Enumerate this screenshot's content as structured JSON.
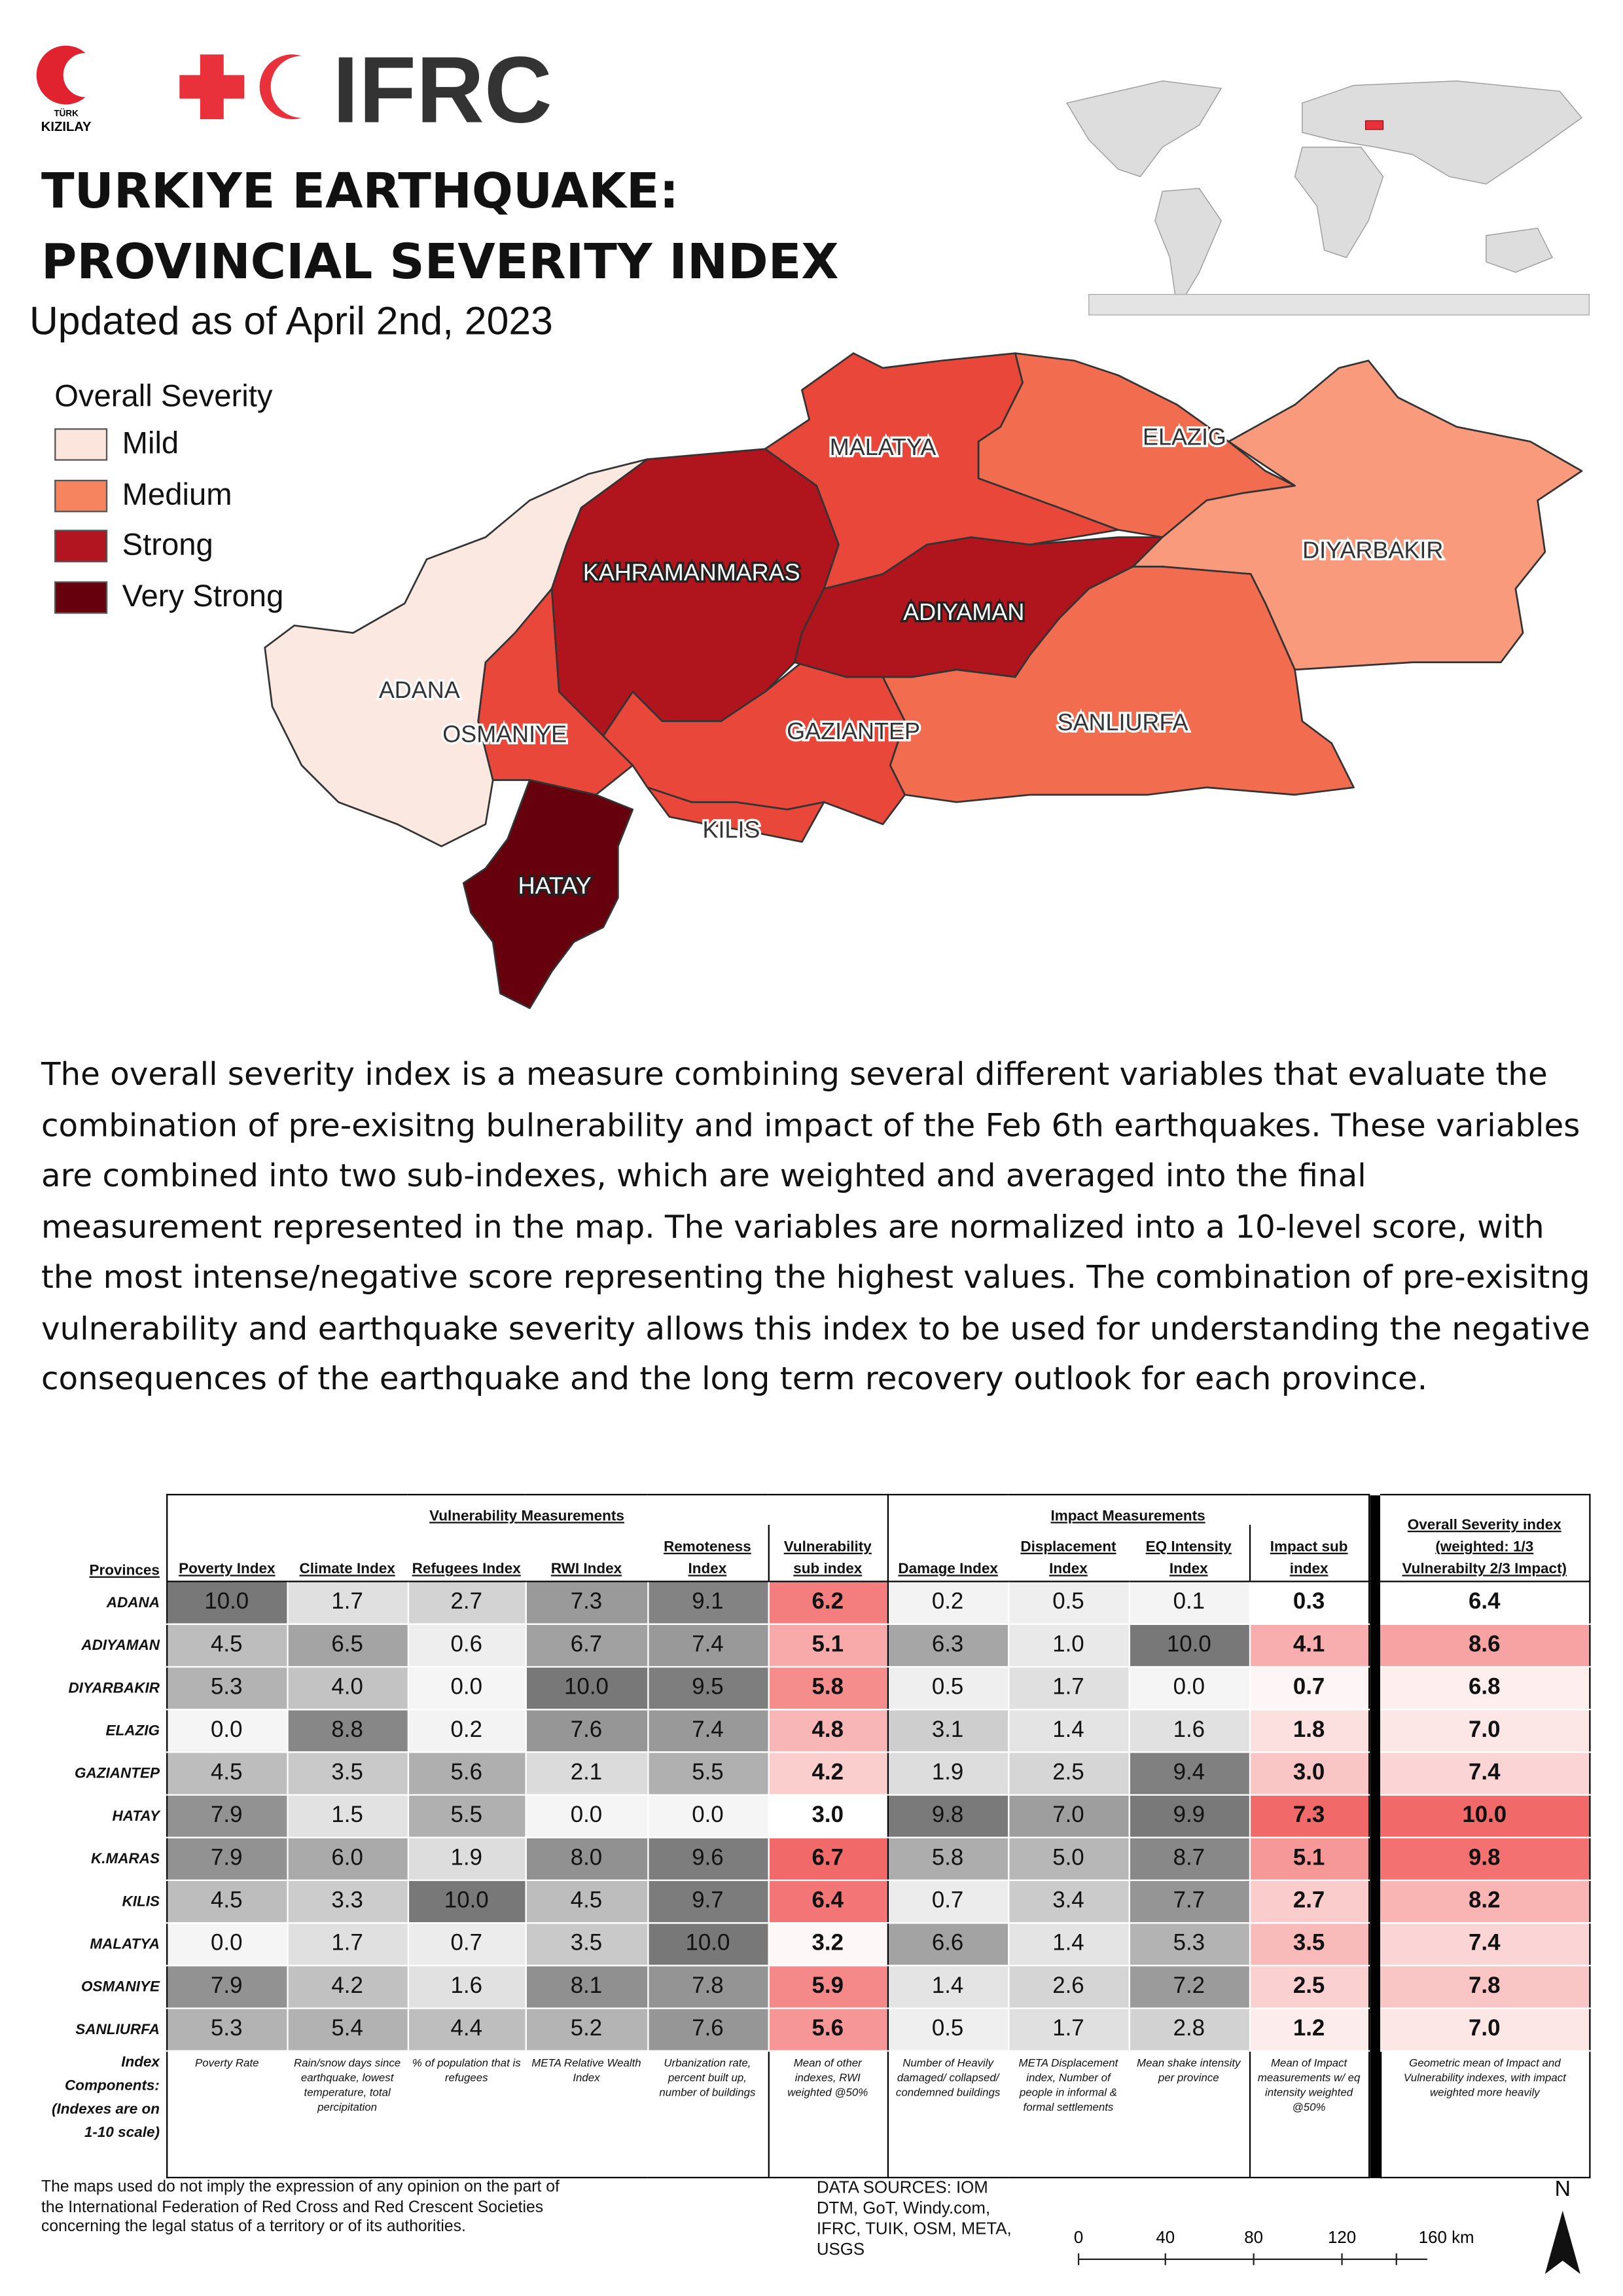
{
  "header": {
    "kizilay_logo": [
      "TÜRK",
      "KIZILAY"
    ],
    "ifrc_logo": "IFRC",
    "title_lines": [
      "TURKIYE EARTHQUAKE:",
      "PROVINCIAL SEVERITY INDEX"
    ],
    "subtitle": "Updated as of April 2nd, 2023"
  },
  "legend": {
    "title": "Overall Severity",
    "items": [
      "Mild",
      "Medium",
      "Strong",
      "Very Strong"
    ]
  },
  "map": {
    "labels": [
      "MALATYA",
      "ELAZIG",
      "DIYARBAKIR",
      "KAHRAMANMARAS",
      "ADIYAMAN",
      "ADANA",
      "OSMANIYE",
      "GAZIANTEP",
      "SANLIURFA",
      "KILIS",
      "HATAY"
    ]
  },
  "description": "The overall severity index is a measure combining several different variables that evaluate the combination of pre-exisitng bulnerability and impact of the Feb 6th earthquakes. These variables are combined into two sub-indexes, which are weighted and averaged into the final measurement represented in the map. The variables are normalized into a 10-level score, with the most intense/negative score representing the highest values. The combination of pre-exisitng vulnerability and earthquake severity allows this index to be used for understanding the negative consequences of the earthquake and the long term recovery outlook for each province.",
  "table": {
    "group_headers": [
      "Vulnerability Measurements",
      "Impact Measurements"
    ],
    "provinces_header": "Provinces",
    "columns": [
      "Poverty Index",
      "Climate Index",
      "Refugees Index",
      "RWI Index",
      "Remoteness Index",
      "Vulnerability sub index",
      "Damage Index",
      "Displacement Index",
      "EQ Intensity Index",
      "Impact sub index",
      "Overall Severity index (weighted: 1/3 Vulnerabilty 2/3 Impact)"
    ],
    "rows": [
      {
        "province": "ADANA",
        "values": [
          "10.0",
          "1.7",
          "2.7",
          "7.3",
          "9.1",
          "6.2",
          "0.2",
          "0.5",
          "0.1",
          "0.3",
          "6.4"
        ]
      },
      {
        "province": "ADIYAMAN",
        "values": [
          "4.5",
          "6.5",
          "0.6",
          "6.7",
          "7.4",
          "5.1",
          "6.3",
          "1.0",
          "10.0",
          "4.1",
          "8.6"
        ]
      },
      {
        "province": "DIYARBAKIR",
        "values": [
          "5.3",
          "4.0",
          "0.0",
          "10.0",
          "9.5",
          "5.8",
          "0.5",
          "1.7",
          "0.0",
          "0.7",
          "6.8"
        ]
      },
      {
        "province": "ELAZIG",
        "values": [
          "0.0",
          "8.8",
          "0.2",
          "7.6",
          "7.4",
          "4.8",
          "3.1",
          "1.4",
          "1.6",
          "1.8",
          "7.0"
        ]
      },
      {
        "province": "GAZIANTEP",
        "values": [
          "4.5",
          "3.5",
          "5.6",
          "2.1",
          "5.5",
          "4.2",
          "1.9",
          "2.5",
          "9.4",
          "3.0",
          "7.4"
        ]
      },
      {
        "province": "HATAY",
        "values": [
          "7.9",
          "1.5",
          "5.5",
          "0.0",
          "0.0",
          "3.0",
          "9.8",
          "7.0",
          "9.9",
          "7.3",
          "10.0"
        ]
      },
      {
        "province": "K.MARAS",
        "values": [
          "7.9",
          "6.0",
          "1.9",
          "8.0",
          "9.6",
          "6.7",
          "5.8",
          "5.0",
          "8.7",
          "5.1",
          "9.8"
        ]
      },
      {
        "province": "KILIS",
        "values": [
          "4.5",
          "3.3",
          "10.0",
          "4.5",
          "9.7",
          "6.4",
          "0.7",
          "3.4",
          "7.7",
          "2.7",
          "8.2"
        ]
      },
      {
        "province": "MALATYA",
        "values": [
          "0.0",
          "1.7",
          "0.7",
          "3.5",
          "10.0",
          "3.2",
          "6.6",
          "1.4",
          "5.3",
          "3.5",
          "7.4"
        ]
      },
      {
        "province": "OSMANIYE",
        "values": [
          "7.9",
          "4.2",
          "1.6",
          "8.1",
          "7.8",
          "5.9",
          "1.4",
          "2.6",
          "7.2",
          "2.5",
          "7.8"
        ]
      },
      {
        "province": "SANLIURFA",
        "values": [
          "5.3",
          "5.4",
          "4.4",
          "5.2",
          "7.6",
          "5.6",
          "0.5",
          "1.7",
          "2.8",
          "1.2",
          "7.0"
        ]
      }
    ],
    "components_label": "Index Components: (Indexes are on 1-10 scale)",
    "components": [
      "Poverty Rate",
      "Rain/snow days since earthquake, lowest temperature, total percipitation",
      "% of population that is refugees",
      "META Relative Wealth Index",
      "Urbanization rate, percent built up, number of buildings",
      "Mean of other indexes, RWI weighted @50%",
      "Number of Heavily damaged/ collapsed/ condemned buildings",
      "META Displacement index, Number of people in informal & formal settlements",
      "Mean shake intensity per province",
      "Mean of Impact measurements w/ eq intensity weighted @50%",
      "Geometric mean of Impact and Vulnerability indexes, with impact weighted more heavily"
    ]
  },
  "footer": {
    "disclaimer": "The maps used do not imply the expression of any opinion on the part of the International Federation of Red Cross and Red Crescent Societies concerning the legal status of a territory or of its authorities.",
    "data_sources": "DATA SOURCES: IOM DTM, GoT, Windy.com, IFRC, TUIK, OSM, META, USGS",
    "scale_labels": [
      "0",
      "40",
      "80",
      "120",
      "160 km"
    ],
    "north": "N"
  }
}
